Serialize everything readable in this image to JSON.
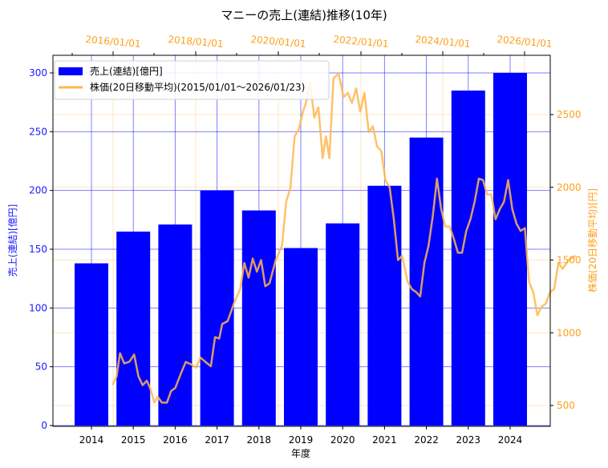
{
  "chart_data": {
    "type": "bar+line",
    "title": "マニーの売上(連結)推移(10年)",
    "xlabel": "年度",
    "ylabel": "売上(連結)[億円]",
    "y2label": "株価(20日移動平均)[円]",
    "categories": [
      "2014",
      "2015",
      "2016",
      "2017",
      "2018",
      "2019",
      "2020",
      "2021",
      "2022",
      "2023",
      "2024"
    ],
    "series": [
      {
        "name": "売上(連結)[億円]",
        "type": "bar",
        "axis": "left",
        "color": "#0000ff",
        "values": [
          138,
          165,
          171,
          200,
          183,
          151,
          172,
          204,
          245,
          285,
          300
        ]
      },
      {
        "name": "株価(20日移動平均)(2015/01/01〜2026/01/23)",
        "type": "line",
        "axis": "right",
        "color": "#ffb74d",
        "points": [
          [
            2015.0,
            640
          ],
          [
            2015.1,
            700
          ],
          [
            2015.18,
            860
          ],
          [
            2015.28,
            790
          ],
          [
            2015.4,
            800
          ],
          [
            2015.52,
            850
          ],
          [
            2015.62,
            700
          ],
          [
            2015.72,
            640
          ],
          [
            2015.82,
            670
          ],
          [
            2015.9,
            620
          ],
          [
            2016.0,
            520
          ],
          [
            2016.08,
            560
          ],
          [
            2016.18,
            520
          ],
          [
            2016.3,
            520
          ],
          [
            2016.4,
            600
          ],
          [
            2016.5,
            620
          ],
          [
            2016.62,
            710
          ],
          [
            2016.75,
            800
          ],
          [
            2016.9,
            780
          ],
          [
            2017.0,
            760
          ],
          [
            2017.1,
            830
          ],
          [
            2017.22,
            800
          ],
          [
            2017.35,
            770
          ],
          [
            2017.45,
            970
          ],
          [
            2017.55,
            960
          ],
          [
            2017.62,
            1060
          ],
          [
            2017.75,
            1080
          ],
          [
            2017.9,
            1200
          ],
          [
            2018.05,
            1300
          ],
          [
            2018.15,
            1480
          ],
          [
            2018.25,
            1380
          ],
          [
            2018.35,
            1510
          ],
          [
            2018.45,
            1420
          ],
          [
            2018.55,
            1500
          ],
          [
            2018.65,
            1320
          ],
          [
            2018.75,
            1340
          ],
          [
            2018.9,
            1500
          ],
          [
            2019.05,
            1600
          ],
          [
            2019.15,
            1900
          ],
          [
            2019.25,
            2000
          ],
          [
            2019.35,
            2350
          ],
          [
            2019.45,
            2400
          ],
          [
            2019.55,
            2520
          ],
          [
            2019.62,
            2580
          ],
          [
            2019.72,
            2720
          ],
          [
            2019.82,
            2480
          ],
          [
            2019.92,
            2550
          ],
          [
            2020.02,
            2200
          ],
          [
            2020.1,
            2350
          ],
          [
            2020.18,
            2200
          ],
          [
            2020.28,
            2750
          ],
          [
            2020.4,
            2780
          ],
          [
            2020.52,
            2620
          ],
          [
            2020.62,
            2650
          ],
          [
            2020.72,
            2580
          ],
          [
            2020.82,
            2680
          ],
          [
            2020.92,
            2520
          ],
          [
            2021.02,
            2650
          ],
          [
            2021.12,
            2380
          ],
          [
            2021.22,
            2420
          ],
          [
            2021.32,
            2280
          ],
          [
            2021.42,
            2250
          ],
          [
            2021.52,
            2050
          ],
          [
            2021.62,
            2000
          ],
          [
            2021.72,
            1780
          ],
          [
            2021.82,
            1500
          ],
          [
            2021.92,
            1530
          ],
          [
            2022.05,
            1350
          ],
          [
            2022.15,
            1300
          ],
          [
            2022.25,
            1280
          ],
          [
            2022.35,
            1250
          ],
          [
            2022.45,
            1480
          ],
          [
            2022.55,
            1600
          ],
          [
            2022.65,
            1800
          ],
          [
            2022.75,
            2060
          ],
          [
            2022.85,
            1850
          ],
          [
            2022.95,
            1730
          ],
          [
            2023.05,
            1730
          ],
          [
            2023.15,
            1650
          ],
          [
            2023.25,
            1550
          ],
          [
            2023.35,
            1550
          ],
          [
            2023.45,
            1700
          ],
          [
            2023.55,
            1780
          ],
          [
            2023.65,
            1900
          ],
          [
            2023.75,
            2060
          ],
          [
            2023.85,
            2050
          ],
          [
            2023.95,
            1950
          ],
          [
            2024.05,
            1950
          ],
          [
            2024.15,
            1780
          ],
          [
            2024.25,
            1850
          ],
          [
            2024.35,
            1900
          ],
          [
            2024.45,
            2050
          ],
          [
            2024.55,
            1850
          ],
          [
            2024.65,
            1750
          ],
          [
            2024.75,
            1700
          ],
          [
            2024.85,
            1720
          ],
          [
            2024.95,
            1350
          ],
          [
            2025.05,
            1280
          ],
          [
            2025.15,
            1120
          ],
          [
            2025.25,
            1180
          ],
          [
            2025.35,
            1200
          ],
          [
            2025.45,
            1280
          ],
          [
            2025.55,
            1300
          ],
          [
            2025.65,
            1480
          ],
          [
            2025.75,
            1440
          ],
          [
            2025.9,
            1500
          ],
          [
            2026.06,
            1530
          ]
        ]
      }
    ],
    "ylim": [
      0,
      315
    ],
    "y_ticks": [
      0,
      50,
      100,
      150,
      200,
      250,
      300
    ],
    "y2lim": [
      370,
      2900
    ],
    "y2_ticks": [
      500,
      1000,
      1500,
      2000,
      2500
    ],
    "top_xaxis_ticks": [
      "2016/01/01",
      "2018/01/01",
      "2020/01/01",
      "2022/01/01",
      "2024/01/01",
      "2026/01/01"
    ],
    "legend_position": "upper left",
    "grid": true
  },
  "legend": {
    "bar_label": "売上(連結)[億円]",
    "line_label": "株価(20日移動平均)(2015/01/01〜2026/01/23)"
  }
}
